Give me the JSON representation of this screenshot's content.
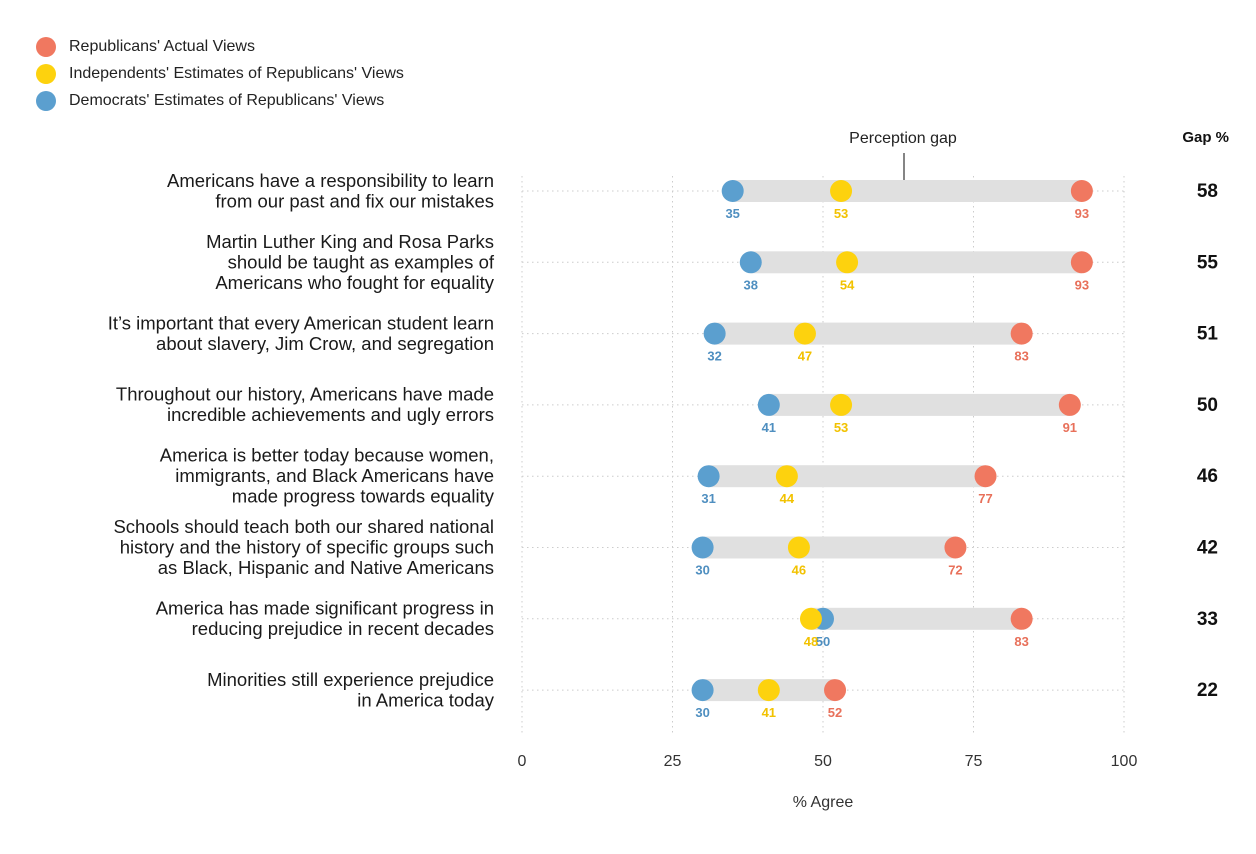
{
  "legend": [
    {
      "label": "Republicans' Actual Views",
      "color": "#f07860"
    },
    {
      "label": "Independents' Estimates of Republicans' Views",
      "color": "#fdd20e"
    },
    {
      "label": "Democrats' Estimates of Republicans' Views",
      "color": "#5b9fcf"
    }
  ],
  "chart_data": {
    "type": "dot-range",
    "xlabel": "% Agree",
    "xlim": [
      0,
      100
    ],
    "x_ticks": [
      0,
      25,
      50,
      75,
      100
    ],
    "gap_header": "Gap %",
    "annotation": "Perception gap",
    "grid": "dotted",
    "series": [
      {
        "key": "dem",
        "name": "Democrats' Estimates of Republicans' Views",
        "color": "#5b9fcf",
        "label_color": "#4f8fc0"
      },
      {
        "key": "ind",
        "name": "Independents' Estimates of Republicans' Views",
        "color": "#fdd20e",
        "label_color": "#f2c200"
      },
      {
        "key": "rep",
        "name": "Republicans' Actual Views",
        "color": "#f07860",
        "label_color": "#e8705a"
      }
    ],
    "rows": [
      {
        "lines": [
          "Americans have a responsibility to learn",
          "from our past and fix our mistakes"
        ],
        "dem": 35,
        "ind": 53,
        "rep": 93,
        "gap": 58
      },
      {
        "lines": [
          "Martin Luther King and Rosa Parks",
          "should be taught as examples of",
          "Americans who fought for equality"
        ],
        "dem": 38,
        "ind": 54,
        "rep": 93,
        "gap": 55
      },
      {
        "lines": [
          "It’s important that every American student learn",
          "about slavery, Jim Crow, and segregation"
        ],
        "dem": 32,
        "ind": 47,
        "rep": 83,
        "gap": 51
      },
      {
        "lines": [
          "Throughout our history, Americans have made",
          "incredible achievements and ugly errors"
        ],
        "dem": 41,
        "ind": 53,
        "rep": 91,
        "gap": 50
      },
      {
        "lines": [
          "America is better today because women,",
          "immigrants, and Black Americans have",
          "made progress towards equality"
        ],
        "dem": 31,
        "ind": 44,
        "rep": 77,
        "gap": 46
      },
      {
        "lines": [
          "Schools should teach both our shared national",
          "history and the history of specific groups such",
          "as Black, Hispanic and Native Americans"
        ],
        "dem": 30,
        "ind": 46,
        "rep": 72,
        "gap": 42
      },
      {
        "lines": [
          "America has made significant progress in",
          "reducing prejudice in recent decades"
        ],
        "dem": 50,
        "ind": 48,
        "rep": 83,
        "gap": 33
      },
      {
        "lines": [
          "Minorities still experience prejudice",
          "in America today"
        ],
        "dem": 30,
        "ind": 41,
        "rep": 52,
        "gap": 22
      }
    ]
  }
}
